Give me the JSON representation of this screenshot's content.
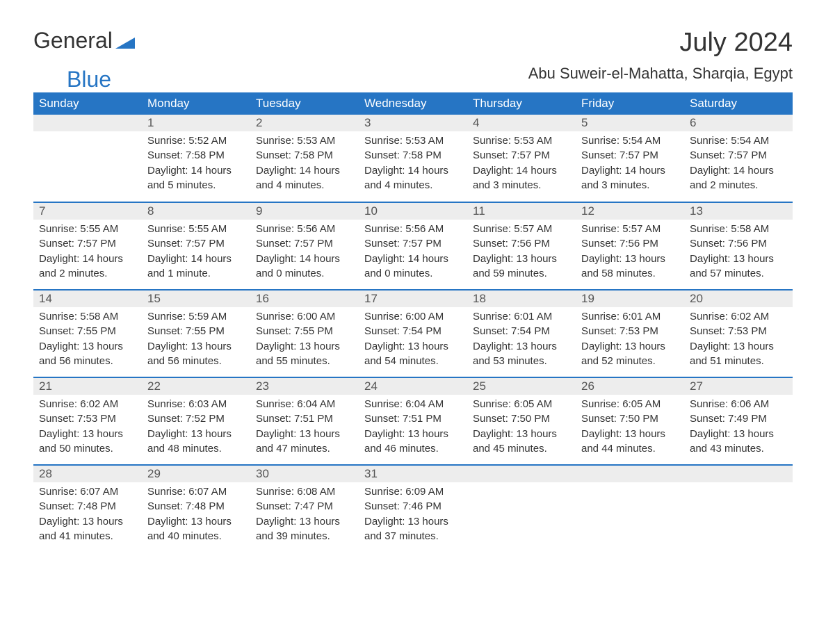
{
  "brand": {
    "word1": "General",
    "word2": "Blue",
    "accent": "#2675c4"
  },
  "title": "July 2024",
  "location": "Abu Suweir-el-Mahatta, Sharqia, Egypt",
  "colors": {
    "header_bg": "#2675c4",
    "header_text": "#ffffff",
    "daynum_bg": "#ededed",
    "daynum_text": "#555555",
    "body_text": "#333333",
    "row_border": "#2675c4",
    "page_bg": "#ffffff"
  },
  "typography": {
    "title_fontsize": 38,
    "subtitle_fontsize": 22,
    "header_fontsize": 17,
    "daynum_fontsize": 17,
    "body_fontsize": 15
  },
  "weekdays": [
    "Sunday",
    "Monday",
    "Tuesday",
    "Wednesday",
    "Thursday",
    "Friday",
    "Saturday"
  ],
  "weeks": [
    [
      null,
      {
        "n": "1",
        "sunrise": "Sunrise: 5:52 AM",
        "sunset": "Sunset: 7:58 PM",
        "dl1": "Daylight: 14 hours",
        "dl2": "and 5 minutes."
      },
      {
        "n": "2",
        "sunrise": "Sunrise: 5:53 AM",
        "sunset": "Sunset: 7:58 PM",
        "dl1": "Daylight: 14 hours",
        "dl2": "and 4 minutes."
      },
      {
        "n": "3",
        "sunrise": "Sunrise: 5:53 AM",
        "sunset": "Sunset: 7:58 PM",
        "dl1": "Daylight: 14 hours",
        "dl2": "and 4 minutes."
      },
      {
        "n": "4",
        "sunrise": "Sunrise: 5:53 AM",
        "sunset": "Sunset: 7:57 PM",
        "dl1": "Daylight: 14 hours",
        "dl2": "and 3 minutes."
      },
      {
        "n": "5",
        "sunrise": "Sunrise: 5:54 AM",
        "sunset": "Sunset: 7:57 PM",
        "dl1": "Daylight: 14 hours",
        "dl2": "and 3 minutes."
      },
      {
        "n": "6",
        "sunrise": "Sunrise: 5:54 AM",
        "sunset": "Sunset: 7:57 PM",
        "dl1": "Daylight: 14 hours",
        "dl2": "and 2 minutes."
      }
    ],
    [
      {
        "n": "7",
        "sunrise": "Sunrise: 5:55 AM",
        "sunset": "Sunset: 7:57 PM",
        "dl1": "Daylight: 14 hours",
        "dl2": "and 2 minutes."
      },
      {
        "n": "8",
        "sunrise": "Sunrise: 5:55 AM",
        "sunset": "Sunset: 7:57 PM",
        "dl1": "Daylight: 14 hours",
        "dl2": "and 1 minute."
      },
      {
        "n": "9",
        "sunrise": "Sunrise: 5:56 AM",
        "sunset": "Sunset: 7:57 PM",
        "dl1": "Daylight: 14 hours",
        "dl2": "and 0 minutes."
      },
      {
        "n": "10",
        "sunrise": "Sunrise: 5:56 AM",
        "sunset": "Sunset: 7:57 PM",
        "dl1": "Daylight: 14 hours",
        "dl2": "and 0 minutes."
      },
      {
        "n": "11",
        "sunrise": "Sunrise: 5:57 AM",
        "sunset": "Sunset: 7:56 PM",
        "dl1": "Daylight: 13 hours",
        "dl2": "and 59 minutes."
      },
      {
        "n": "12",
        "sunrise": "Sunrise: 5:57 AM",
        "sunset": "Sunset: 7:56 PM",
        "dl1": "Daylight: 13 hours",
        "dl2": "and 58 minutes."
      },
      {
        "n": "13",
        "sunrise": "Sunrise: 5:58 AM",
        "sunset": "Sunset: 7:56 PM",
        "dl1": "Daylight: 13 hours",
        "dl2": "and 57 minutes."
      }
    ],
    [
      {
        "n": "14",
        "sunrise": "Sunrise: 5:58 AM",
        "sunset": "Sunset: 7:55 PM",
        "dl1": "Daylight: 13 hours",
        "dl2": "and 56 minutes."
      },
      {
        "n": "15",
        "sunrise": "Sunrise: 5:59 AM",
        "sunset": "Sunset: 7:55 PM",
        "dl1": "Daylight: 13 hours",
        "dl2": "and 56 minutes."
      },
      {
        "n": "16",
        "sunrise": "Sunrise: 6:00 AM",
        "sunset": "Sunset: 7:55 PM",
        "dl1": "Daylight: 13 hours",
        "dl2": "and 55 minutes."
      },
      {
        "n": "17",
        "sunrise": "Sunrise: 6:00 AM",
        "sunset": "Sunset: 7:54 PM",
        "dl1": "Daylight: 13 hours",
        "dl2": "and 54 minutes."
      },
      {
        "n": "18",
        "sunrise": "Sunrise: 6:01 AM",
        "sunset": "Sunset: 7:54 PM",
        "dl1": "Daylight: 13 hours",
        "dl2": "and 53 minutes."
      },
      {
        "n": "19",
        "sunrise": "Sunrise: 6:01 AM",
        "sunset": "Sunset: 7:53 PM",
        "dl1": "Daylight: 13 hours",
        "dl2": "and 52 minutes."
      },
      {
        "n": "20",
        "sunrise": "Sunrise: 6:02 AM",
        "sunset": "Sunset: 7:53 PM",
        "dl1": "Daylight: 13 hours",
        "dl2": "and 51 minutes."
      }
    ],
    [
      {
        "n": "21",
        "sunrise": "Sunrise: 6:02 AM",
        "sunset": "Sunset: 7:53 PM",
        "dl1": "Daylight: 13 hours",
        "dl2": "and 50 minutes."
      },
      {
        "n": "22",
        "sunrise": "Sunrise: 6:03 AM",
        "sunset": "Sunset: 7:52 PM",
        "dl1": "Daylight: 13 hours",
        "dl2": "and 48 minutes."
      },
      {
        "n": "23",
        "sunrise": "Sunrise: 6:04 AM",
        "sunset": "Sunset: 7:51 PM",
        "dl1": "Daylight: 13 hours",
        "dl2": "and 47 minutes."
      },
      {
        "n": "24",
        "sunrise": "Sunrise: 6:04 AM",
        "sunset": "Sunset: 7:51 PM",
        "dl1": "Daylight: 13 hours",
        "dl2": "and 46 minutes."
      },
      {
        "n": "25",
        "sunrise": "Sunrise: 6:05 AM",
        "sunset": "Sunset: 7:50 PM",
        "dl1": "Daylight: 13 hours",
        "dl2": "and 45 minutes."
      },
      {
        "n": "26",
        "sunrise": "Sunrise: 6:05 AM",
        "sunset": "Sunset: 7:50 PM",
        "dl1": "Daylight: 13 hours",
        "dl2": "and 44 minutes."
      },
      {
        "n": "27",
        "sunrise": "Sunrise: 6:06 AM",
        "sunset": "Sunset: 7:49 PM",
        "dl1": "Daylight: 13 hours",
        "dl2": "and 43 minutes."
      }
    ],
    [
      {
        "n": "28",
        "sunrise": "Sunrise: 6:07 AM",
        "sunset": "Sunset: 7:48 PM",
        "dl1": "Daylight: 13 hours",
        "dl2": "and 41 minutes."
      },
      {
        "n": "29",
        "sunrise": "Sunrise: 6:07 AM",
        "sunset": "Sunset: 7:48 PM",
        "dl1": "Daylight: 13 hours",
        "dl2": "and 40 minutes."
      },
      {
        "n": "30",
        "sunrise": "Sunrise: 6:08 AM",
        "sunset": "Sunset: 7:47 PM",
        "dl1": "Daylight: 13 hours",
        "dl2": "and 39 minutes."
      },
      {
        "n": "31",
        "sunrise": "Sunrise: 6:09 AM",
        "sunset": "Sunset: 7:46 PM",
        "dl1": "Daylight: 13 hours",
        "dl2": "and 37 minutes."
      },
      null,
      null,
      null
    ]
  ]
}
